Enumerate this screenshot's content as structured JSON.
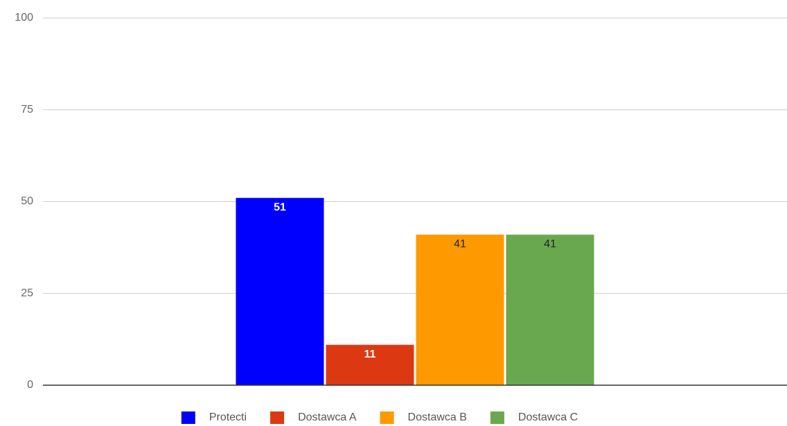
{
  "chart_data": {
    "type": "bar",
    "categories": [
      null
    ],
    "series": [
      {
        "name": "Protecti",
        "color": "#0000ff",
        "values": [
          51
        ]
      },
      {
        "name": "Dostawca A",
        "color": "#dc3912",
        "values": [
          11
        ]
      },
      {
        "name": "Dostawca B",
        "color": "#ff9900",
        "values": [
          41
        ]
      },
      {
        "name": "Dostawca C",
        "color": "#6aa84f",
        "values": [
          41
        ]
      }
    ],
    "ylim": [
      0,
      100
    ],
    "yticks": [
      0,
      25,
      50,
      75,
      100
    ],
    "grid": true,
    "legend": "bottom"
  }
}
